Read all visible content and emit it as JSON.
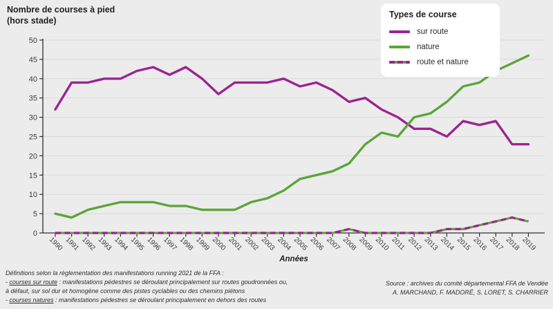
{
  "title": {
    "line1": "Nombre de courses à pied",
    "line2": "(hors stade)"
  },
  "legend": {
    "title": "Types de course",
    "items": [
      {
        "label": "sur route",
        "style": "solid",
        "color": "#9c2392"
      },
      {
        "label": "nature",
        "style": "solid",
        "color": "#5ca53a"
      },
      {
        "label": "route et nature",
        "style": "dashed",
        "color": "#9c2392",
        "color2": "#5ca53a"
      }
    ]
  },
  "chart_data": {
    "type": "line",
    "title": "Nombre de courses à pied (hors stade)",
    "xlabel": "Années",
    "ylabel": "Nombre de courses à pied (hors stade)",
    "ylim": [
      0,
      50
    ],
    "yticks": [
      0,
      5,
      10,
      15,
      20,
      25,
      30,
      35,
      40,
      45,
      50
    ],
    "grid": "horizontal",
    "legend_position": "top-right",
    "categories": [
      "1990",
      "1991",
      "1992",
      "1993",
      "1994",
      "1995",
      "1996",
      "1997",
      "1998",
      "1999",
      "2000",
      "2001",
      "2002",
      "2003",
      "2004",
      "2005",
      "2006",
      "2007",
      "2008",
      "2009",
      "2010",
      "2011",
      "2012",
      "2013",
      "2014",
      "2015",
      "2016",
      "2017",
      "2018",
      "2019"
    ],
    "series": [
      {
        "name": "sur route",
        "color": "#9c2392",
        "style": "solid",
        "values": [
          32,
          39,
          39,
          40,
          40,
          42,
          43,
          41,
          43,
          40,
          36,
          39,
          39,
          39,
          40,
          38,
          39,
          37,
          34,
          35,
          32,
          30,
          27,
          27,
          25,
          29,
          28,
          29,
          23,
          23
        ]
      },
      {
        "name": "nature",
        "color": "#5ca53a",
        "style": "solid",
        "values": [
          5,
          4,
          6,
          7,
          8,
          8,
          8,
          7,
          7,
          6,
          6,
          6,
          8,
          9,
          11,
          14,
          15,
          16,
          18,
          23,
          26,
          25,
          30,
          31,
          34,
          38,
          39,
          42,
          44,
          46
        ]
      },
      {
        "name": "route et nature",
        "color": "#9c2392",
        "color2": "#5ca53a",
        "style": "dashed-two-color",
        "values": [
          0,
          0,
          0,
          0,
          0,
          0,
          0,
          0,
          0,
          0,
          0,
          0,
          0,
          0,
          0,
          0,
          0,
          0,
          1,
          0,
          0,
          0,
          0,
          0,
          1,
          1,
          2,
          3,
          4,
          3
        ]
      }
    ]
  },
  "footer": {
    "intro": "Définitions selon la règlementation des manifestations running 2021 de la FFA :",
    "def1_pre": "- ",
    "def1_term": "courses sur route",
    "def1_rest": " : manifestations pédestres se déroulant principalement sur routes goudronnées ou,",
    "def1_cont": "à défaut, sur sol dur et homogène comme des pistes cyclables ou des chemins piétons",
    "def2_pre": "- ",
    "def2_term": "courses natures",
    "def2_rest": " : manifestations pédestres se déroulant principalement en dehors des routes"
  },
  "source": {
    "line1": "Source : archives du comité départemental FFA de Vendée",
    "line2": "A. MARCHAND, F. MADORÉ, S. LORET, S. CHARRIER"
  },
  "colors": {
    "background": "#ececec",
    "grid": "#d9d9d9",
    "axis": "#2e2e2e",
    "sur_route": "#9c2392",
    "nature": "#5ca53a"
  }
}
